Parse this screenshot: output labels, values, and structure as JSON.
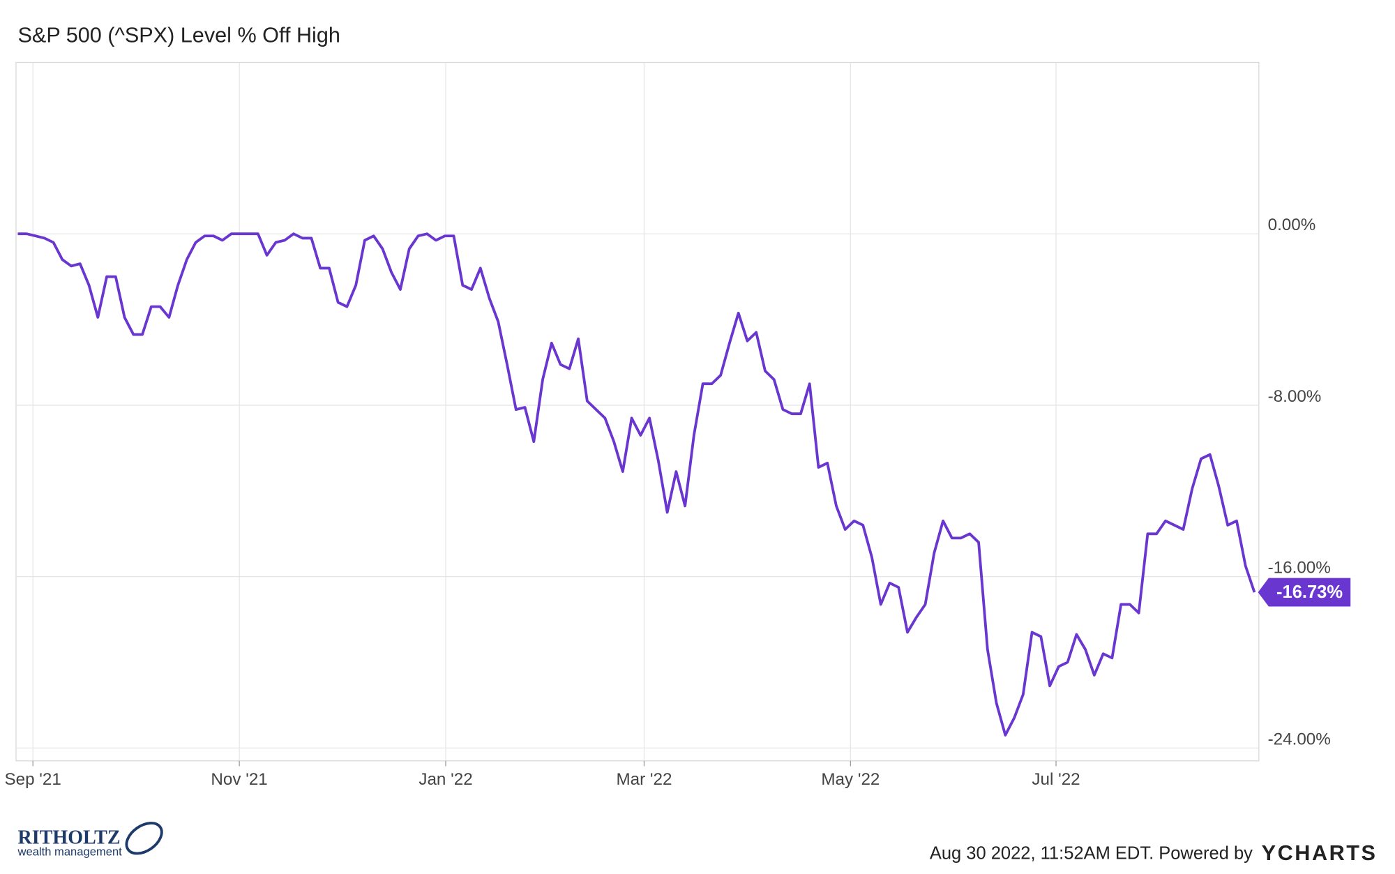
{
  "chart_data": {
    "type": "line",
    "title": "S&P 500 (^SPX) Level % Off High",
    "xlim": [
      -0.2,
      139.5
    ],
    "xticks": [
      {
        "value": 1.7,
        "label": "Sep '21"
      },
      {
        "value": 24.9,
        "label": "Nov '21"
      },
      {
        "value": 48.1,
        "label": "Jan '22"
      },
      {
        "value": 70.4,
        "label": "Mar '22"
      },
      {
        "value": 93.6,
        "label": "May '22"
      },
      {
        "value": 116.7,
        "label": "Jul '22"
      }
    ],
    "ylim": [
      -24.6,
      8
    ],
    "yticks": [
      {
        "value": 0,
        "label": "0.00%"
      },
      {
        "value": -8,
        "label": "-8.00%"
      },
      {
        "value": -16,
        "label": "-16.00%"
      },
      {
        "value": -24,
        "label": "-24.00%"
      }
    ],
    "grid": true,
    "y_axis_side": "right",
    "series": [
      {
        "name": "S&P 500 (^SPX) Level % Off High",
        "color": "#6a36d0",
        "values": [
          0,
          0,
          -0.1,
          -0.2,
          -0.4,
          -1.2,
          -1.5,
          -1.4,
          -2.4,
          -3.9,
          -2.0,
          -2.0,
          -3.9,
          -4.7,
          -4.7,
          -3.4,
          -3.4,
          -3.9,
          -2.4,
          -1.2,
          -0.4,
          -0.1,
          -0.1,
          -0.3,
          0,
          0,
          0,
          0,
          -1.0,
          -0.4,
          -0.3,
          0,
          -0.2,
          -0.2,
          -1.6,
          -1.6,
          -3.2,
          -3.4,
          -2.4,
          -0.3,
          -0.1,
          -0.7,
          -1.8,
          -2.6,
          -0.7,
          -0.1,
          0,
          -0.3,
          -0.1,
          -0.1,
          -2.4,
          -2.6,
          -1.6,
          -3.0,
          -4.1,
          -6.1,
          -8.2,
          -8.1,
          -9.7,
          -6.8,
          -5.1,
          -6.1,
          -6.3,
          -4.9,
          -7.8,
          -8.2,
          -8.6,
          -9.7,
          -11.1,
          -8.6,
          -9.4,
          -8.6,
          -10.6,
          -13.0,
          -11.1,
          -12.7,
          -9.4,
          -7.0,
          -7.0,
          -6.6,
          -5.1,
          -3.7,
          -5.0,
          -4.6,
          -6.4,
          -6.8,
          -8.2,
          -8.4,
          -8.4,
          -7.0,
          -10.9,
          -10.7,
          -12.7,
          -13.8,
          -13.4,
          -13.6,
          -15.1,
          -17.3,
          -16.3,
          -16.5,
          -18.6,
          -17.9,
          -17.3,
          -14.9,
          -13.4,
          -14.2,
          -14.2,
          -14.0,
          -14.4,
          -19.4,
          -21.9,
          -23.4,
          -22.6,
          -21.5,
          -18.6,
          -18.8,
          -21.1,
          -20.2,
          -20.0,
          -18.7,
          -19.4,
          -20.6,
          -19.6,
          -19.8,
          -17.3,
          -17.3,
          -17.7,
          -14.0,
          -14.0,
          -13.4,
          -13.6,
          -13.8,
          -11.9,
          -10.5,
          -10.3,
          -11.8,
          -13.6,
          -13.4,
          -15.5,
          -16.73
        ],
        "last_value_label": "-16.73%"
      }
    ],
    "footer": {
      "timestamp": "Aug 30 2022, 11:52AM EDT. Powered by",
      "brand": "YCHARTS",
      "logo_name": "RITHOLTZ",
      "logo_sub": "wealth management"
    }
  }
}
